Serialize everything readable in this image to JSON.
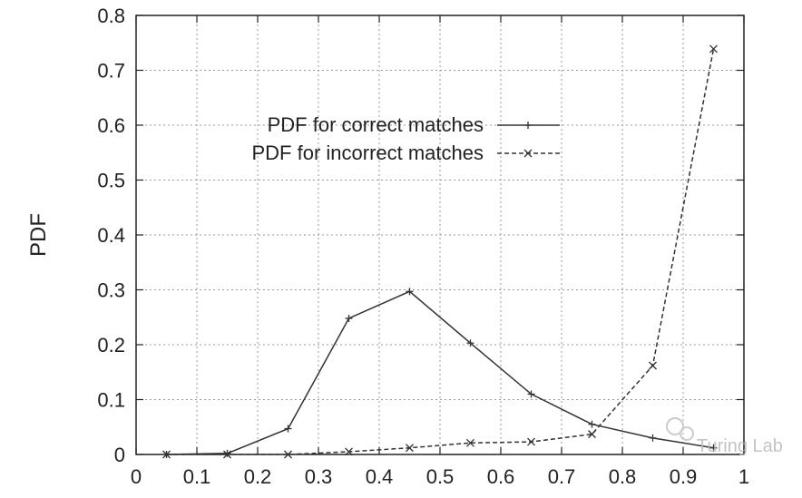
{
  "chart_data": {
    "type": "line",
    "title": "",
    "xlabel": "",
    "ylabel": "PDF",
    "xlim": [
      0,
      1
    ],
    "ylim": [
      0,
      0.8
    ],
    "x_ticks": [
      "0",
      "0.1",
      "0.2",
      "0.3",
      "0.4",
      "0.5",
      "0.6",
      "0.7",
      "0.8",
      "0.9",
      "1"
    ],
    "y_ticks": [
      "0",
      "0.1",
      "0.2",
      "0.3",
      "0.4",
      "0.5",
      "0.6",
      "0.7",
      "0.8"
    ],
    "grid": true,
    "legend_position": "top-left",
    "series": [
      {
        "name": "PDF for correct matches",
        "line_style": "solid",
        "marker": "plus",
        "x": [
          0.05,
          0.15,
          0.25,
          0.35,
          0.45,
          0.55,
          0.65,
          0.75,
          0.85,
          0.95
        ],
        "values": [
          0.0,
          0.002,
          0.047,
          0.248,
          0.297,
          0.203,
          0.11,
          0.055,
          0.03,
          0.012
        ]
      },
      {
        "name": "PDF for incorrect matches",
        "line_style": "dashed",
        "marker": "cross",
        "x": [
          0.05,
          0.15,
          0.25,
          0.35,
          0.45,
          0.55,
          0.65,
          0.75,
          0.85,
          0.95
        ],
        "values": [
          0.0,
          0.0,
          0.0,
          0.005,
          0.012,
          0.021,
          0.023,
          0.037,
          0.162,
          0.739
        ]
      }
    ]
  },
  "watermark": {
    "text": "Turing Lab"
  }
}
